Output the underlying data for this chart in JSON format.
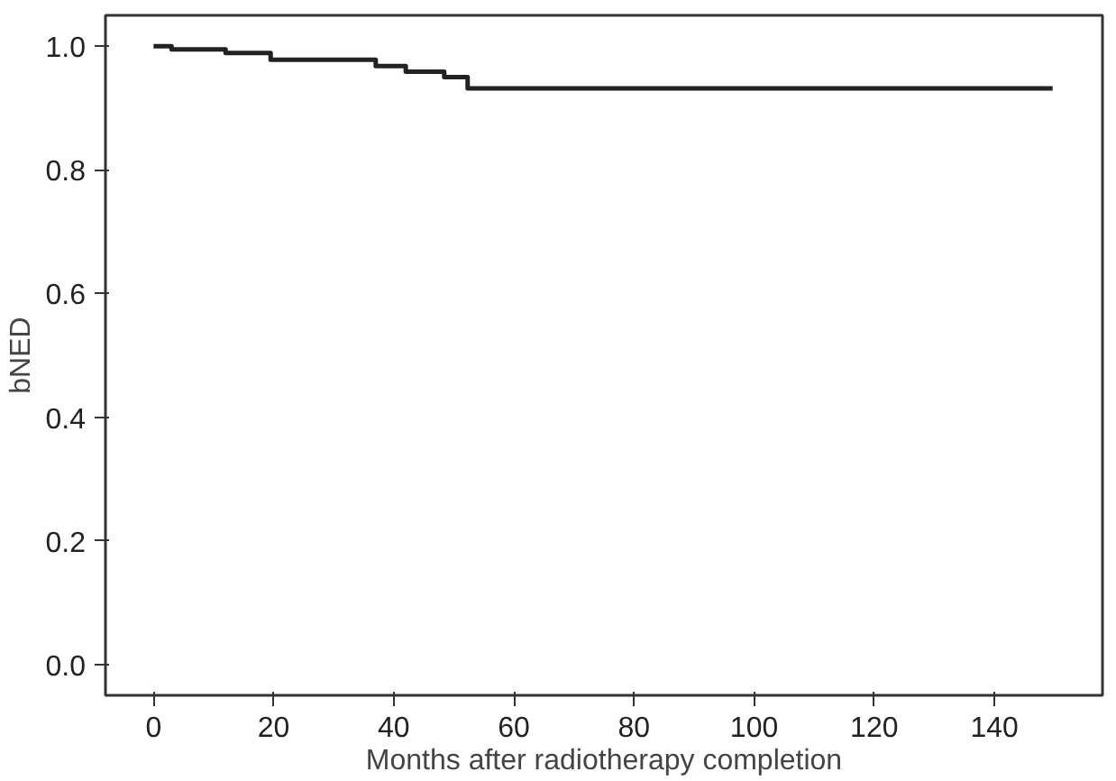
{
  "chart_data": {
    "type": "step",
    "xlabel": "Months after radiotherapy completion",
    "ylabel": "bNED",
    "x": [
      0,
      3,
      12,
      19.5,
      37,
      42,
      48.4,
      52.3,
      149.7
    ],
    "series": [
      {
        "color": "#222222",
        "values": [
          1.0,
          0.995,
          0.989,
          0.978,
          0.968,
          0.959,
          0.95,
          0.932,
          0.932
        ]
      }
    ],
    "xlim": [
      -8,
      158
    ],
    "ylim": [
      -0.05,
      1.05
    ],
    "xticks": [
      0,
      20,
      40,
      60,
      80,
      100,
      120,
      140
    ],
    "yticks": [
      {
        "value": 0,
        "label": "0.0"
      },
      0.2,
      0.4,
      0.6,
      0.8,
      {
        "value": 1,
        "label": "1.0"
      }
    ],
    "line_style": "solid"
  }
}
